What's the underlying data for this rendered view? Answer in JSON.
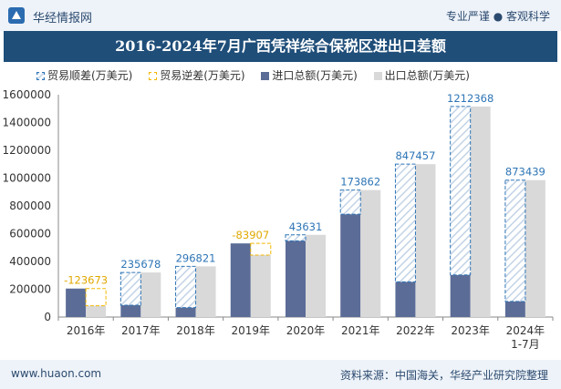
{
  "header": {
    "brand": "华经情报网",
    "tagline": "专业严谨 ● 客观科学"
  },
  "title": "2016-2024年7月广西凭祥综合保税区进出口差额",
  "legend": {
    "surplus": "贸易顺差(万美元)",
    "deficit": "贸易逆差(万美元)",
    "import": "进口总额(万美元)",
    "export": "出口总额(万美元)"
  },
  "colors": {
    "import": "#5b6c97",
    "export": "#d9d9d9",
    "surplus_border": "#2e75b6",
    "surplus_label": "#2e75b6",
    "deficit_border": "#f2b800",
    "deficit_label": "#e0a800"
  },
  "chart_data": {
    "type": "bar",
    "categories": [
      "2016年",
      "2017年",
      "2018年",
      "2019年",
      "2020年",
      "2021年",
      "2022年",
      "2023年",
      "2024年\n1-7月"
    ],
    "series": [
      {
        "name": "进口总额(万美元)",
        "values": [
          205000,
          85000,
          68000,
          530000,
          548000,
          740000,
          253000,
          303000,
          112000
        ]
      },
      {
        "name": "出口总额(万美元)",
        "values": [
          81327,
          320678,
          364821,
          446093,
          591631,
          913862,
          1100457,
          1515368,
          985439
        ]
      }
    ],
    "balance": {
      "name": "贸易差额(万美元)",
      "values": [
        -123673,
        235678,
        296821,
        -83907,
        43631,
        173862,
        847457,
        1212368,
        873439
      ],
      "labels": [
        "-123673",
        "235678",
        "296821",
        "-83907",
        "43631",
        "173862",
        "847457",
        "1212368",
        "873439"
      ]
    },
    "ylim": [
      0,
      1600000
    ],
    "yticks": [
      "0",
      "200000",
      "400000",
      "600000",
      "800000",
      "1000000",
      "1200000",
      "1400000",
      "1600000"
    ],
    "title": "2016-2024年7月广西凭祥综合保税区进出口差额",
    "xlabel": "",
    "ylabel": ""
  },
  "footer": {
    "website": "www.huaon.com",
    "source": "资料来源：中国海关，华经产业研究院整理"
  }
}
